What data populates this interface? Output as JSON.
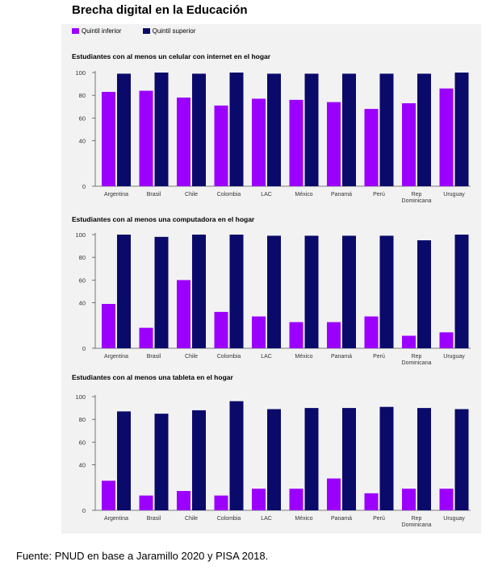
{
  "page_title": "Brecha digital en la Educación",
  "legend": [
    {
      "label": "Quintil inferior",
      "color": "#9b00ff"
    },
    {
      "label": "Quintil superior",
      "color": "#0a0a6b"
    }
  ],
  "source": "Fuente: PNUD en base a Jaramillo 2020 y PISA 2018.",
  "chart_data": [
    {
      "type": "bar",
      "title": "Estudiantes con al menos un celular con internet en el hogar",
      "categories": [
        "Argentina",
        "Brasil",
        "Chile",
        "Colombia",
        "LAC",
        "México",
        "Panamá",
        "Perú",
        "Rep Dominicana",
        "Uruguay"
      ],
      "series": [
        {
          "name": "Quintil inferior",
          "values": [
            83,
            84,
            78,
            71,
            77,
            76,
            74,
            68,
            73,
            86
          ]
        },
        {
          "name": "Quintil superior",
          "values": [
            99,
            100,
            99,
            100,
            99,
            99,
            99,
            99,
            99,
            100
          ]
        }
      ],
      "yticks": [
        0,
        40,
        60,
        80,
        100
      ],
      "ylim": [
        0,
        100
      ]
    },
    {
      "type": "bar",
      "title": "Estudiantes con al menos una computadora en el hogar",
      "categories": [
        "Argentina",
        "Brasil",
        "Chile",
        "Colombia",
        "LAC",
        "México",
        "Panamá",
        "Perú",
        "Rep Dominicana",
        "Uruguay"
      ],
      "series": [
        {
          "name": "Quintil inferior",
          "values": [
            39,
            18,
            60,
            32,
            28,
            23,
            23,
            28,
            11,
            14
          ]
        },
        {
          "name": "Quintil superior",
          "values": [
            100,
            98,
            100,
            100,
            99,
            99,
            99,
            99,
            95,
            100
          ]
        }
      ],
      "yticks": [
        0,
        40,
        60,
        80,
        100
      ],
      "ylim": [
        0,
        100
      ]
    },
    {
      "type": "bar",
      "title": "Estudiantes con al menos una tableta en el hogar",
      "categories": [
        "Argentina",
        "Brasil",
        "Chile",
        "Colombia",
        "LAC",
        "México",
        "Panamá",
        "Perú",
        "Rep Dominicana",
        "Uruguay"
      ],
      "series": [
        {
          "name": "Quintil inferior",
          "values": [
            26,
            13,
            17,
            13,
            19,
            19,
            28,
            15,
            19,
            19
          ]
        },
        {
          "name": "Quintil superior",
          "values": [
            87,
            85,
            88,
            96,
            89,
            90,
            90,
            91,
            90,
            89
          ]
        }
      ],
      "yticks": [
        0,
        40,
        60,
        80,
        100
      ],
      "ylim": [
        0,
        100
      ]
    }
  ]
}
